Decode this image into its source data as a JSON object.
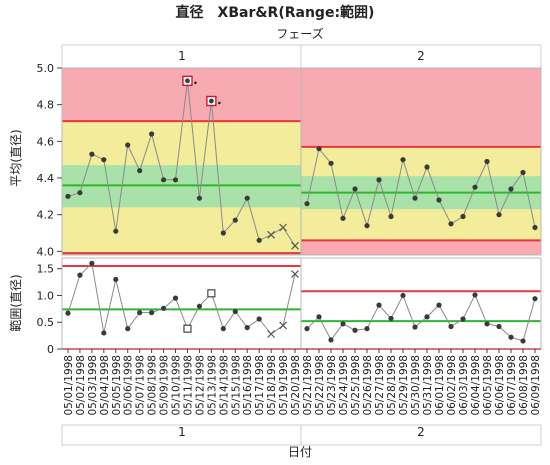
{
  "title": "直径　XBar&R(Range:範囲)",
  "phase_header": "フェーズ",
  "xlabel": "日付",
  "colors": {
    "red_zone": "#f7aab2",
    "yellow_zone": "#f2ec9b",
    "green_zone": "#a9e2a8",
    "limit_line": "#e8373c",
    "center_line": "#2fb52f",
    "series_line": "#8a8a8a",
    "point": "#3a3a3a",
    "flag": "#d0182c"
  },
  "chart_data": [
    {
      "type": "line",
      "name": "xbar",
      "ylabel": "平均(直径)",
      "ylim": [
        3.98,
        5.0
      ],
      "yticks": [
        "4.0",
        "4.2",
        "4.4",
        "4.6",
        "4.8",
        "5.0"
      ],
      "phases": [
        {
          "label": "1",
          "x": [
            "05/01/1998",
            "05/02/1998",
            "05/03/1998",
            "05/04/1998",
            "05/05/1998",
            "05/06/1998",
            "05/07/1998",
            "05/08/1998",
            "05/09/1998",
            "05/10/1998",
            "05/11/1998",
            "05/12/1998",
            "05/13/1998",
            "05/14/1998",
            "05/15/1998",
            "05/16/1998",
            "05/17/1998",
            "05/18/1998",
            "05/19/1998",
            "05/20/1998"
          ],
          "values": [
            4.3,
            4.32,
            4.53,
            4.5,
            4.11,
            4.58,
            4.44,
            4.64,
            4.39,
            4.39,
            4.93,
            4.29,
            4.82,
            4.1,
            4.17,
            4.29,
            4.06,
            4.09,
            4.13,
            4.03
          ],
          "markers": [
            "dot",
            "dot",
            "dot",
            "dot",
            "dot",
            "dot",
            "dot",
            "dot",
            "dot",
            "dot",
            "flag",
            "dot",
            "flag",
            "dot",
            "dot",
            "dot",
            "dot",
            "x",
            "x",
            "x"
          ],
          "ucl": 4.71,
          "cl": 4.36,
          "lcl": 3.99,
          "zone_b_upper": 4.47,
          "zone_b_lower": 4.24
        },
        {
          "label": "2",
          "x": [
            "05/21/1998",
            "05/22/1998",
            "05/23/1998",
            "05/24/1998",
            "05/25/1998",
            "05/26/1998",
            "05/27/1998",
            "05/28/1998",
            "05/29/1998",
            "05/30/1998",
            "05/31/1998",
            "06/01/1998",
            "06/02/1998",
            "06/03/1998",
            "06/04/1998",
            "06/05/1998",
            "06/06/1998",
            "06/07/1998",
            "06/08/1998",
            "06/09/1998"
          ],
          "values": [
            4.26,
            4.56,
            4.48,
            4.18,
            4.34,
            4.14,
            4.39,
            4.19,
            4.5,
            4.29,
            4.46,
            4.28,
            4.15,
            4.19,
            4.35,
            4.49,
            4.2,
            4.34,
            4.43,
            4.13
          ],
          "markers": [
            "dot",
            "dot",
            "dot",
            "dot",
            "dot",
            "dot",
            "dot",
            "dot",
            "dot",
            "dot",
            "dot",
            "dot",
            "dot",
            "dot",
            "dot",
            "dot",
            "dot",
            "dot",
            "dot",
            "dot"
          ],
          "ucl": 4.57,
          "cl": 4.32,
          "lcl": 4.06,
          "zone_b_upper": 4.41,
          "zone_b_lower": 4.23
        }
      ]
    },
    {
      "type": "line",
      "name": "range",
      "ylabel": "範囲(直径)",
      "ylim": [
        0,
        1.7
      ],
      "yticks": [
        "0",
        "0.5",
        "1.0",
        "1.5"
      ],
      "phases": [
        {
          "label": "1",
          "values": [
            0.67,
            1.38,
            1.6,
            0.3,
            1.3,
            0.38,
            0.68,
            0.68,
            0.76,
            0.95,
            0.38,
            0.8,
            1.04,
            0.38,
            0.7,
            0.4,
            0.56,
            0.28,
            0.44,
            1.4
          ],
          "markers": [
            "dot",
            "dot",
            "dot",
            "dot",
            "dot",
            "dot",
            "dot",
            "dot",
            "dot",
            "dot",
            "square",
            "dot",
            "square",
            "dot",
            "dot",
            "dot",
            "dot",
            "x",
            "x",
            "x"
          ],
          "ucl": 1.55,
          "cl": 0.74,
          "lcl": 0.0
        },
        {
          "label": "2",
          "values": [
            0.38,
            0.6,
            0.17,
            0.47,
            0.35,
            0.38,
            0.82,
            0.57,
            1.0,
            0.41,
            0.6,
            0.82,
            0.42,
            0.56,
            1.01,
            0.47,
            0.42,
            0.22,
            0.15,
            0.94
          ],
          "markers": [
            "dot",
            "dot",
            "dot",
            "dot",
            "dot",
            "dot",
            "dot",
            "dot",
            "dot",
            "dot",
            "dot",
            "dot",
            "dot",
            "dot",
            "dot",
            "dot",
            "dot",
            "dot",
            "dot",
            "dot"
          ],
          "ucl": 1.08,
          "cl": 0.52,
          "lcl": 0.0
        }
      ]
    }
  ]
}
